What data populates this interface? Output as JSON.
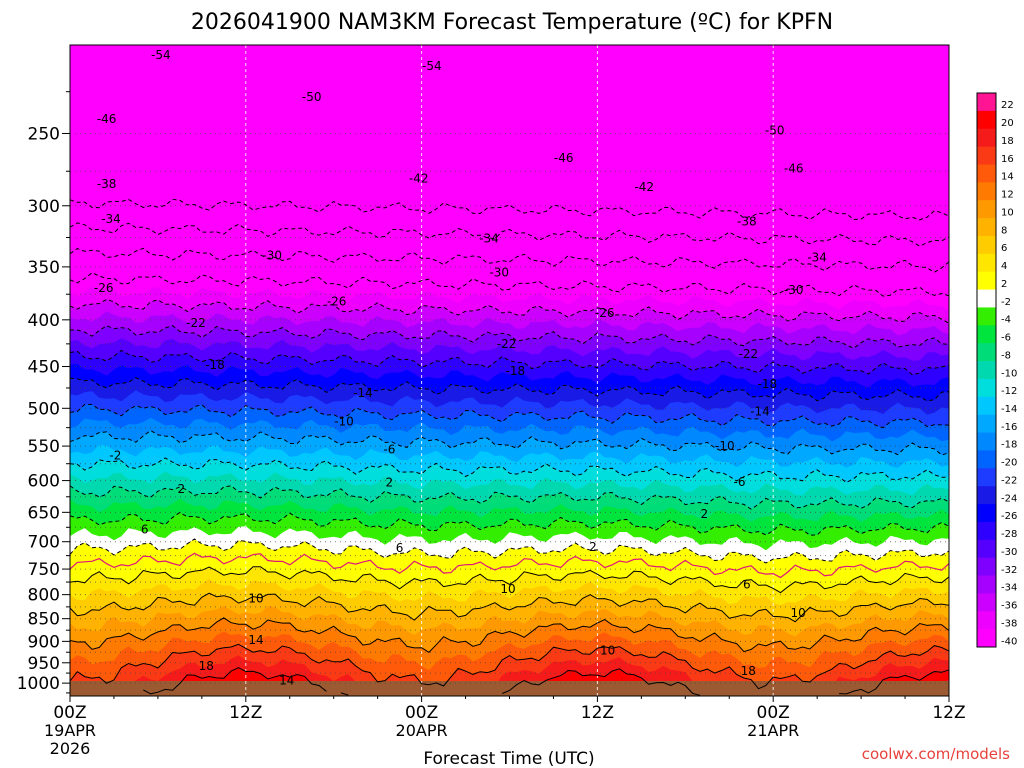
{
  "chart_data": {
    "type": "heatmap",
    "title": "2026041900 NAM3KM Forecast Temperature (ºC) for KPFN",
    "xlabel": "Forecast Time (UTC)",
    "ylabel": "",
    "x_ticks": [
      {
        "hour": 0,
        "lines": [
          "00Z",
          "19APR",
          "2026"
        ]
      },
      {
        "hour": 12,
        "lines": [
          "12Z"
        ]
      },
      {
        "hour": 24,
        "lines": [
          "00Z",
          "20APR"
        ]
      },
      {
        "hour": 36,
        "lines": [
          "12Z"
        ]
      },
      {
        "hour": 48,
        "lines": [
          "00Z",
          "21APR"
        ]
      },
      {
        "hour": 60,
        "lines": [
          "12Z"
        ]
      }
    ],
    "xlim": [
      0,
      60
    ],
    "ylim_hPa": [
      1033,
      200
    ],
    "y_ticks": [
      250,
      300,
      350,
      400,
      450,
      500,
      550,
      600,
      650,
      700,
      750,
      800,
      850,
      900,
      950,
      1000
    ],
    "colorbar": {
      "levels": [
        22,
        20,
        18,
        16,
        14,
        12,
        10,
        8,
        6,
        4,
        2,
        -2,
        -4,
        -6,
        -8,
        -10,
        -12,
        -14,
        -16,
        -18,
        -20,
        -22,
        -24,
        -26,
        -28,
        -30,
        -32,
        -34,
        -36,
        -38,
        -40
      ],
      "colors": [
        "#ff1493",
        "#ff0000",
        "#f51b1b",
        "#fa3a14",
        "#ff5a0a",
        "#ff7a00",
        "#ff9900",
        "#ffb300",
        "#ffcc00",
        "#ffe600",
        "#ffff00",
        "#ffffff",
        "#33ee00",
        "#00e43e",
        "#00dc78",
        "#00d9b0",
        "#00dddd",
        "#00c8ff",
        "#00a8ff",
        "#0088ff",
        "#0064ff",
        "#1e3cff",
        "#1a1ae6",
        "#0000ff",
        "#2e00ff",
        "#5500ff",
        "#7f00ff",
        "#a600ff",
        "#cc00ff",
        "#ee00ff",
        "#ff00ff"
      ]
    },
    "contour_labels": [
      {
        "hour": 6.2,
        "p": 205,
        "text": "-54"
      },
      {
        "hour": 16.5,
        "p": 228,
        "text": "-50"
      },
      {
        "hour": 2.5,
        "p": 241,
        "text": "-46"
      },
      {
        "hour": 24.7,
        "p": 211,
        "text": "-54"
      },
      {
        "hour": 2.5,
        "p": 284,
        "text": "-38"
      },
      {
        "hour": 2.8,
        "p": 310,
        "text": "-34"
      },
      {
        "hour": 23.8,
        "p": 280,
        "text": "-42"
      },
      {
        "hour": 33.7,
        "p": 266,
        "text": "-46"
      },
      {
        "hour": 48.1,
        "p": 248,
        "text": "-50"
      },
      {
        "hour": 49.4,
        "p": 273,
        "text": "-46"
      },
      {
        "hour": 39.2,
        "p": 286,
        "text": "-42"
      },
      {
        "hour": 46.2,
        "p": 312,
        "text": "-38"
      },
      {
        "hour": 28.6,
        "p": 326,
        "text": "-34"
      },
      {
        "hour": 51.0,
        "p": 342,
        "text": "-34"
      },
      {
        "hour": 13.8,
        "p": 340,
        "text": "-30"
      },
      {
        "hour": 29.3,
        "p": 355,
        "text": "-30"
      },
      {
        "hour": 49.4,
        "p": 371,
        "text": "-30"
      },
      {
        "hour": 2.3,
        "p": 369,
        "text": "-26"
      },
      {
        "hour": 18.2,
        "p": 382,
        "text": "-26"
      },
      {
        "hour": 36.5,
        "p": 393,
        "text": "-26"
      },
      {
        "hour": 8.6,
        "p": 403,
        "text": "-22"
      },
      {
        "hour": 29.8,
        "p": 425,
        "text": "-22"
      },
      {
        "hour": 46.3,
        "p": 436,
        "text": "-22"
      },
      {
        "hour": 9.9,
        "p": 448,
        "text": "-18"
      },
      {
        "hour": 30.4,
        "p": 455,
        "text": "-18"
      },
      {
        "hour": 47.6,
        "p": 470,
        "text": "-18"
      },
      {
        "hour": 20.0,
        "p": 481,
        "text": "-14"
      },
      {
        "hour": 47.1,
        "p": 504,
        "text": "-14"
      },
      {
        "hour": 18.7,
        "p": 517,
        "text": "-10"
      },
      {
        "hour": 44.7,
        "p": 550,
        "text": "-10"
      },
      {
        "hour": 21.8,
        "p": 555,
        "text": "-6"
      },
      {
        "hour": 45.7,
        "p": 602,
        "text": "-6"
      },
      {
        "hour": 3.1,
        "p": 563,
        "text": "-2"
      },
      {
        "hour": 7.6,
        "p": 613,
        "text": "2"
      },
      {
        "hour": 21.8,
        "p": 603,
        "text": "2"
      },
      {
        "hour": 43.3,
        "p": 653,
        "text": "2"
      },
      {
        "hour": 35.7,
        "p": 709,
        "text": "2"
      },
      {
        "hour": 5.1,
        "p": 679,
        "text": "6"
      },
      {
        "hour": 22.5,
        "p": 711,
        "text": "6"
      },
      {
        "hour": 46.2,
        "p": 780,
        "text": "6"
      },
      {
        "hour": 12.7,
        "p": 808,
        "text": "10"
      },
      {
        "hour": 29.9,
        "p": 789,
        "text": "10"
      },
      {
        "hour": 49.7,
        "p": 838,
        "text": "10"
      },
      {
        "hour": 36.7,
        "p": 921,
        "text": "10"
      },
      {
        "hour": 12.7,
        "p": 897,
        "text": "14"
      },
      {
        "hour": 14.8,
        "p": 993,
        "text": "14"
      },
      {
        "hour": 9.3,
        "p": 958,
        "text": "18"
      },
      {
        "hour": 46.3,
        "p": 970,
        "text": "18"
      }
    ],
    "credit": "coolwx.com/models"
  }
}
